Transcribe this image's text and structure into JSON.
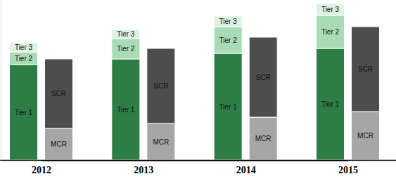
{
  "chart_data": {
    "type": "bar",
    "stacked": true,
    "tick_labels": "x",
    "categories": [
      "2012",
      "2013",
      "2014",
      "2015"
    ],
    "ylim": [
      0,
      228
    ],
    "stacks": [
      {
        "series": [
          {
            "name": "Tier 1",
            "color": "#2e7d46",
            "values": [
              136,
              144,
              152,
              159
            ]
          },
          {
            "name": "Tier 2",
            "color": "#a9dcb6",
            "values": [
              18,
              29,
              38,
              47
            ]
          },
          {
            "name": "Tier 3",
            "color": "#dcf2e2",
            "values": [
              13,
              13,
              15,
              17
            ]
          }
        ]
      },
      {
        "series": [
          {
            "name": "MCR",
            "color": "#a6a6a6",
            "values": [
              45,
              52,
              61,
              69
            ]
          },
          {
            "name": "SCR",
            "color": "#4d4d4d",
            "values": [
              99,
              107,
              114,
              121
            ]
          }
        ]
      }
    ]
  }
}
